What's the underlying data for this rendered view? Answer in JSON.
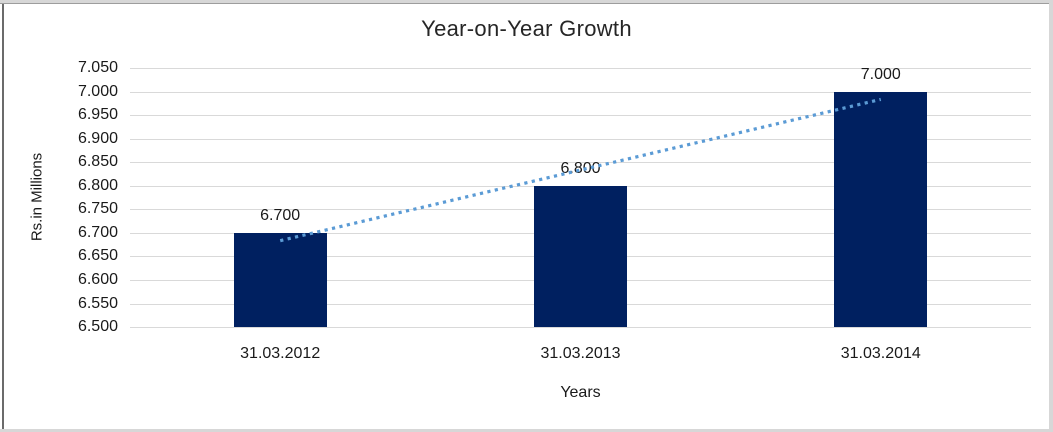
{
  "chart_data": {
    "type": "bar",
    "title": "Year-on-Year Growth",
    "xlabel": "Years",
    "ylabel": "Rs.in Millions",
    "categories": [
      "31.03.2012",
      "31.03.2013",
      "31.03.2014"
    ],
    "values": [
      6.7,
      6.8,
      7.0
    ],
    "data_labels": [
      "6.700",
      "6.800",
      "7.000"
    ],
    "ylim": [
      6.5,
      7.05
    ],
    "ytick_step": 0.05,
    "ytick_labels": [
      "6.500",
      "6.550",
      "6.600",
      "6.650",
      "6.700",
      "6.750",
      "6.800",
      "6.850",
      "6.900",
      "6.950",
      "7.000",
      "7.050"
    ],
    "grid": true,
    "legend": "none",
    "bar_color": "#002060",
    "gridline_color": "#D9D9D9",
    "trendline": {
      "type": "linear",
      "style": "dotted",
      "color": "#5B9BD5"
    }
  }
}
